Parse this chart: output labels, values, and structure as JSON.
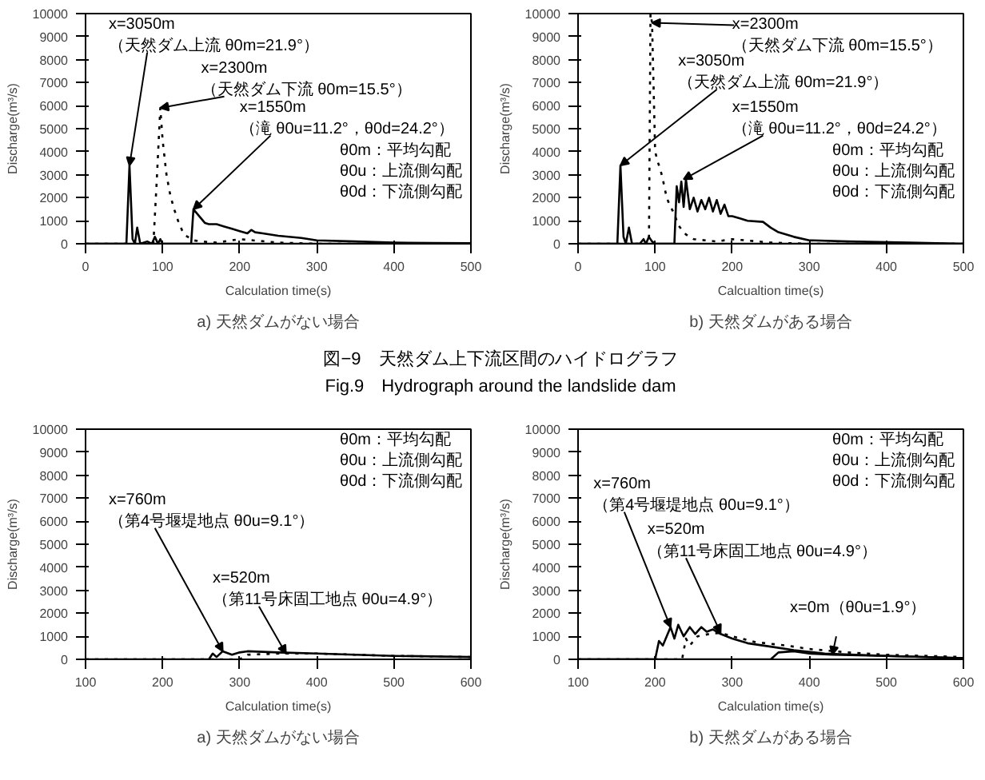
{
  "chart_data": [
    {
      "type": "line",
      "subtitle": "a) 天然ダムがない場合",
      "xlabel": "Calculation time(s)",
      "ylabel": "Discharge(m³/s)",
      "xlim": [
        0,
        500
      ],
      "xticks": [
        0,
        100,
        200,
        300,
        400,
        500
      ],
      "ylim": [
        0,
        10000
      ],
      "yticks": [
        0,
        1000,
        2000,
        3000,
        4000,
        5000,
        6000,
        7000,
        8000,
        9000,
        10000
      ],
      "grid": false,
      "marker": "none",
      "series": [
        {
          "color": "#000000",
          "line_style": "solid",
          "x": [
            0,
            53,
            57,
            61,
            64,
            67,
            71,
            80,
            86,
            90,
            94,
            97,
            100,
            110,
            500
          ],
          "values": [
            0,
            0,
            3400,
            200,
            0,
            700,
            0,
            100,
            0,
            300,
            0,
            200,
            0,
            0,
            0
          ]
        },
        {
          "color": "#000000",
          "line_style": "dotted",
          "x": [
            0,
            88,
            92,
            97,
            100,
            105,
            110,
            115,
            120,
            125,
            130,
            140,
            150,
            170,
            200,
            250,
            300,
            500
          ],
          "values": [
            0,
            0,
            2500,
            5900,
            4500,
            3000,
            2100,
            1500,
            1000,
            600,
            350,
            150,
            100,
            50,
            200,
            50,
            0,
            0
          ]
        },
        {
          "color": "#000000",
          "line_style": "solid",
          "x": [
            0,
            137,
            140,
            145,
            150,
            155,
            160,
            170,
            180,
            190,
            200,
            210,
            215,
            220,
            230,
            250,
            280,
            300,
            350,
            400,
            450,
            500
          ],
          "values": [
            0,
            0,
            1500,
            1300,
            1100,
            900,
            850,
            850,
            750,
            650,
            550,
            450,
            600,
            500,
            450,
            350,
            250,
            150,
            100,
            50,
            30,
            20
          ]
        }
      ],
      "annotations": [
        "θ0m：平均勾配",
        "θ0u：上流側勾配",
        "θ0d：下流側勾配",
        {
          "text": "x=3050m\n（天然ダム上流 θ0m=21.9°）",
          "x": 57,
          "y": 3400
        },
        {
          "text": "x=2300m\n（天然ダム下流 θ0m=15.5°）",
          "x": 97,
          "y": 5900
        },
        {
          "text": "x=1550m\n（滝 θ0u=11.2°，θ0d=24.2°）",
          "x": 140,
          "y": 1500
        }
      ]
    },
    {
      "type": "line",
      "subtitle": "b) 天然ダムがある場合",
      "xlabel": "Calcualtion time(s)",
      "ylabel": "Discharge(m³/s)",
      "xlim": [
        0,
        500
      ],
      "xticks": [
        0,
        100,
        200,
        300,
        400,
        500
      ],
      "ylim": [
        0,
        10000
      ],
      "yticks": [
        0,
        1000,
        2000,
        3000,
        4000,
        5000,
        6000,
        7000,
        8000,
        9000,
        10000
      ],
      "grid": false,
      "marker": "none",
      "series": [
        {
          "color": "#000000",
          "line_style": "solid",
          "x": [
            0,
            51,
            55,
            59,
            62,
            66,
            70,
            80,
            85,
            88,
            92,
            96,
            100,
            120,
            500
          ],
          "values": [
            0,
            0,
            3400,
            300,
            0,
            700,
            0,
            0,
            200,
            0,
            300,
            100,
            0,
            0,
            0
          ]
        },
        {
          "color": "#000000",
          "line_style": "dotted",
          "x": [
            0,
            92,
            94,
            96,
            100,
            104,
            107,
            110,
            115,
            120,
            125,
            130,
            140,
            150,
            180,
            200,
            250,
            300,
            500
          ],
          "values": [
            0,
            0,
            10000,
            9600,
            4000,
            3500,
            3200,
            2800,
            2000,
            1600,
            1300,
            800,
            400,
            200,
            100,
            200,
            50,
            0,
            0
          ]
        },
        {
          "color": "#000000",
          "line_style": "solid",
          "x": [
            0,
            125,
            128,
            131,
            134,
            137,
            140,
            145,
            150,
            155,
            160,
            165,
            170,
            175,
            180,
            185,
            190,
            195,
            200,
            210,
            220,
            240,
            250,
            260,
            280,
            300,
            350,
            430,
            500
          ],
          "values": [
            0,
            0,
            2500,
            1800,
            2700,
            1600,
            2800,
            1500,
            2000,
            1400,
            1900,
            1500,
            2000,
            1400,
            1900,
            1300,
            1700,
            1200,
            1200,
            1100,
            1000,
            950,
            700,
            500,
            300,
            150,
            100,
            50,
            0
          ]
        }
      ],
      "annotations": [
        "θ0m：平均勾配",
        "θ0u：上流側勾配",
        "θ0d：下流側勾配",
        {
          "text": "x=2300m\n（天然ダム下流 θ0m=15.5°）",
          "x": 96,
          "y": 9600
        },
        {
          "text": "x=3050m\n（天然ダム上流 θ0m=21.9°）",
          "x": 55,
          "y": 3400
        },
        {
          "text": "x=1550m\n（滝 θ0u=11.2°，θ0d=24.2°）",
          "x": 137,
          "y": 2800
        },
        "図−9　天然ダム上下流区間のハイドログラフ",
        "Fig.9　Hydrograph around the landslide dam"
      ]
    },
    {
      "type": "line",
      "subtitle": "a) 天然ダムがない場合",
      "xlabel": "Calculation time(s)",
      "ylabel": "Discharge(m³/s)",
      "xlim": [
        100,
        600
      ],
      "xticks": [
        100,
        200,
        300,
        400,
        500,
        600
      ],
      "ylim": [
        0,
        10000
      ],
      "yticks": [
        0,
        1000,
        2000,
        3000,
        4000,
        5000,
        6000,
        7000,
        8000,
        9000,
        10000
      ],
      "grid": false,
      "marker": "none",
      "series": [
        {
          "color": "#000000",
          "line_style": "solid",
          "x": [
            100,
            260,
            265,
            270,
            278,
            290,
            300,
            310,
            350,
            400,
            450,
            500,
            600
          ],
          "values": [
            0,
            0,
            250,
            100,
            350,
            200,
            300,
            350,
            300,
            250,
            200,
            150,
            100
          ]
        },
        {
          "color": "#000000",
          "line_style": "dotted",
          "x": [
            100,
            300,
            310,
            350,
            400,
            450,
            500,
            600
          ],
          "values": [
            0,
            0,
            200,
            250,
            250,
            200,
            150,
            100
          ]
        }
      ],
      "annotations": [
        "θ0m：平均勾配",
        "θ0u：上流側勾配",
        "θ0d：下流側勾配",
        {
          "text": "x=760m\n（第4号堰堤地点 θ0u=9.1°）",
          "x": 278,
          "y": 350
        },
        {
          "text": "x=520m\n（第11号床固工地点 θ0u=4.9°）",
          "x": 360,
          "y": 250
        }
      ]
    },
    {
      "type": "line",
      "subtitle": "b) 天然ダムがある場合",
      "xlabel": "Calculation time(s)",
      "ylabel": "Discharge(m³/s)",
      "xlim": [
        100,
        600
      ],
      "xticks": [
        100,
        200,
        300,
        400,
        500,
        600
      ],
      "ylim": [
        0,
        10000
      ],
      "yticks": [
        0,
        1000,
        2000,
        3000,
        4000,
        5000,
        6000,
        7000,
        8000,
        9000,
        10000
      ],
      "grid": false,
      "marker": "none",
      "series": [
        {
          "color": "#000000",
          "line_style": "solid",
          "x": [
            100,
            200,
            205,
            210,
            215,
            220,
            225,
            230,
            237,
            245,
            252,
            260,
            267,
            275,
            285,
            300,
            320,
            350,
            380,
            420,
            500,
            600
          ],
          "values": [
            0,
            0,
            800,
            600,
            1000,
            1400,
            900,
            1500,
            1000,
            1400,
            1100,
            1400,
            1200,
            1300,
            1100,
            900,
            700,
            550,
            400,
            250,
            150,
            50
          ]
        },
        {
          "color": "#000000",
          "line_style": "dotted",
          "x": [
            100,
            235,
            240,
            245,
            255,
            270,
            285,
            300,
            330,
            370,
            400,
            450,
            500,
            600
          ],
          "values": [
            0,
            0,
            900,
            600,
            1000,
            1100,
            1150,
            1000,
            750,
            600,
            450,
            300,
            200,
            100
          ]
        },
        {
          "color": "#000000",
          "line_style": "solid",
          "x": [
            100,
            350,
            360,
            380,
            400,
            430,
            500,
            600
          ],
          "values": [
            0,
            0,
            300,
            350,
            250,
            200,
            150,
            50
          ]
        }
      ],
      "annotations": [
        "θ0m：平均勾配",
        "θ0u：上流側勾配",
        "θ0d：下流側勾配",
        {
          "text": "x=760m\n（第4号堰堤地点 θ0u=9.1°）",
          "x": 220,
          "y": 1400
        },
        {
          "text": "x=520m\n（第11号床固工地点 θ0u=4.9°）",
          "x": 285,
          "y": 1150
        },
        {
          "text": "x=0m（θ0u=1.9°）",
          "x": 430,
          "y": 200
        }
      ]
    }
  ]
}
